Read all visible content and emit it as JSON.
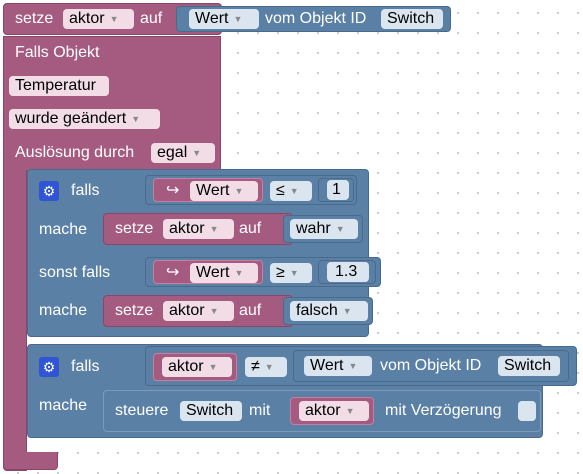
{
  "set_block": {
    "setze": "setze",
    "variable": "aktor",
    "auf": "auf",
    "attr": "Wert",
    "vom_objekt": "vom Objekt ID",
    "object_id": "Switch"
  },
  "trigger": {
    "falls_objekt": "Falls Objekt",
    "object": "Temperatur",
    "event": "wurde geändert",
    "ausloesung": "Auslösung durch",
    "ausloesung_value": "egal"
  },
  "if_block_1": {
    "falls": "falls",
    "cond1_attr": "Wert",
    "cond1_op": "≤",
    "cond1_value": "1",
    "mache": "mache",
    "then1": {
      "setze": "setze",
      "variable": "aktor",
      "auf": "auf",
      "value": "wahr"
    },
    "sonst_falls": "sonst falls",
    "cond2_attr": "Wert",
    "cond2_op": "≥",
    "cond2_value": "1.3",
    "mache2": "mache",
    "then2": {
      "setze": "setze",
      "variable": "aktor",
      "auf": "auf",
      "value": "falsch"
    }
  },
  "if_block_2": {
    "falls": "falls",
    "variable": "aktor",
    "op": "≠",
    "attr": "Wert",
    "vom_objekt": "vom Objekt ID",
    "object_id": "Switch",
    "mache": "mache",
    "control": {
      "steuere": "steuere",
      "object_id": "Switch",
      "mit": "mit",
      "variable": "aktor",
      "mit_verzoegerung": "mit Verzögerung"
    }
  },
  "icons": {
    "gear": "gear-icon",
    "return_arrow": "return-arrow-icon",
    "dropdown": "dropdown-arrow-icon"
  },
  "colors": {
    "event_block": "#a55b80",
    "logic_block": "#5b80a5",
    "gear": "#2f55d4"
  }
}
